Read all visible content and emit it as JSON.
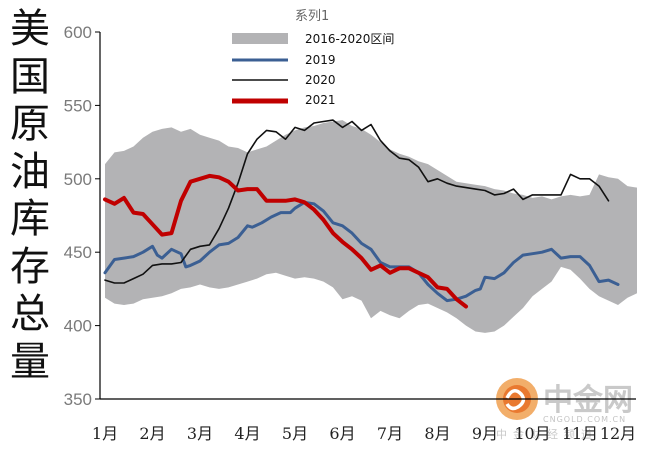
{
  "chart_data": {
    "type": "line",
    "title": "",
    "ylabel": "美国原油库存总量",
    "legend_title": "系列1",
    "legend_position": "top-center",
    "grid": false,
    "ylim": [
      350,
      600
    ],
    "yticks": [
      "350",
      "400",
      "450",
      "500",
      "550",
      "600"
    ],
    "categories": [
      "1月",
      "2月",
      "3月",
      "4月",
      "5月",
      "6月",
      "7月",
      "8月",
      "9月",
      "10月",
      "11月",
      "12月"
    ],
    "band": {
      "name": "2016-2020区间",
      "color": "#b3b3b5",
      "upper": [
        [
          0,
          510
        ],
        [
          0.2,
          518
        ],
        [
          0.4,
          519
        ],
        [
          0.6,
          522
        ],
        [
          0.8,
          528
        ],
        [
          1.0,
          532
        ],
        [
          1.2,
          534
        ],
        [
          1.4,
          535
        ],
        [
          1.6,
          532
        ],
        [
          1.8,
          534
        ],
        [
          2.0,
          530
        ],
        [
          2.2,
          528
        ],
        [
          2.4,
          526
        ],
        [
          2.6,
          522
        ],
        [
          2.8,
          521
        ],
        [
          3.0,
          518
        ],
        [
          3.2,
          520
        ],
        [
          3.4,
          522
        ],
        [
          3.6,
          526
        ],
        [
          3.8,
          530
        ],
        [
          4.0,
          533
        ],
        [
          4.2,
          535
        ],
        [
          4.4,
          536
        ],
        [
          4.6,
          538
        ],
        [
          4.8,
          539
        ],
        [
          5.0,
          540
        ],
        [
          5.2,
          536
        ],
        [
          5.4,
          534
        ],
        [
          5.6,
          530
        ],
        [
          5.8,
          525
        ],
        [
          6.0,
          520
        ],
        [
          6.2,
          517
        ],
        [
          6.4,
          515
        ],
        [
          6.6,
          512
        ],
        [
          6.8,
          510
        ],
        [
          7.0,
          506
        ],
        [
          7.2,
          502
        ],
        [
          7.4,
          498
        ],
        [
          7.6,
          497
        ],
        [
          7.8,
          496
        ],
        [
          8.0,
          495
        ],
        [
          8.2,
          493
        ],
        [
          8.4,
          492
        ],
        [
          8.6,
          490
        ],
        [
          8.8,
          489
        ],
        [
          9.0,
          487
        ],
        [
          9.2,
          488
        ],
        [
          9.4,
          486
        ],
        [
          9.6,
          488
        ],
        [
          9.8,
          489
        ],
        [
          10.0,
          488
        ],
        [
          10.2,
          489
        ],
        [
          10.4,
          503
        ],
        [
          10.6,
          501
        ],
        [
          10.8,
          500
        ],
        [
          11.0,
          495
        ],
        [
          11.2,
          494
        ]
      ],
      "lower": [
        [
          11.2,
          422
        ],
        [
          11.0,
          419
        ],
        [
          10.8,
          414
        ],
        [
          10.6,
          417
        ],
        [
          10.4,
          420
        ],
        [
          10.2,
          425
        ],
        [
          10.0,
          432
        ],
        [
          9.8,
          438
        ],
        [
          9.6,
          440
        ],
        [
          9.4,
          430
        ],
        [
          9.2,
          425
        ],
        [
          9.0,
          420
        ],
        [
          8.8,
          412
        ],
        [
          8.6,
          406
        ],
        [
          8.4,
          400
        ],
        [
          8.2,
          396
        ],
        [
          8.0,
          395
        ],
        [
          7.8,
          396
        ],
        [
          7.6,
          400
        ],
        [
          7.4,
          405
        ],
        [
          7.2,
          409
        ],
        [
          7.0,
          412
        ],
        [
          6.8,
          415
        ],
        [
          6.6,
          414
        ],
        [
          6.4,
          410
        ],
        [
          6.2,
          405
        ],
        [
          6.0,
          407
        ],
        [
          5.8,
          410
        ],
        [
          5.6,
          405
        ],
        [
          5.4,
          417
        ],
        [
          5.2,
          420
        ],
        [
          5.0,
          418
        ],
        [
          4.8,
          426
        ],
        [
          4.6,
          430
        ],
        [
          4.4,
          432
        ],
        [
          4.2,
          433
        ],
        [
          4.0,
          432
        ],
        [
          3.8,
          434
        ],
        [
          3.6,
          436
        ],
        [
          3.4,
          435
        ],
        [
          3.2,
          432
        ],
        [
          3.0,
          430
        ],
        [
          2.8,
          428
        ],
        [
          2.6,
          426
        ],
        [
          2.4,
          425
        ],
        [
          2.2,
          426
        ],
        [
          2.0,
          428
        ],
        [
          1.8,
          426
        ],
        [
          1.6,
          425
        ],
        [
          1.4,
          422
        ],
        [
          1.2,
          420
        ],
        [
          1.0,
          419
        ],
        [
          0.8,
          418
        ],
        [
          0.6,
          415
        ],
        [
          0.4,
          414
        ],
        [
          0.2,
          415
        ],
        [
          0,
          419
        ]
      ]
    },
    "series": [
      {
        "name": "2019",
        "color": "#3b5f93",
        "width": 3,
        "points": [
          [
            0,
            436
          ],
          [
            0.2,
            445
          ],
          [
            0.4,
            446
          ],
          [
            0.6,
            447
          ],
          [
            0.8,
            450
          ],
          [
            1.0,
            454
          ],
          [
            1.1,
            448
          ],
          [
            1.2,
            446
          ],
          [
            1.4,
            452
          ],
          [
            1.6,
            449
          ],
          [
            1.7,
            440
          ],
          [
            1.8,
            441
          ],
          [
            2.0,
            444
          ],
          [
            2.2,
            450
          ],
          [
            2.4,
            455
          ],
          [
            2.6,
            456
          ],
          [
            2.8,
            460
          ],
          [
            3.0,
            468
          ],
          [
            3.1,
            467
          ],
          [
            3.3,
            470
          ],
          [
            3.5,
            474
          ],
          [
            3.7,
            477
          ],
          [
            3.9,
            477
          ],
          [
            4.0,
            480
          ],
          [
            4.2,
            484
          ],
          [
            4.4,
            483
          ],
          [
            4.6,
            478
          ],
          [
            4.8,
            470
          ],
          [
            5.0,
            468
          ],
          [
            5.2,
            463
          ],
          [
            5.4,
            456
          ],
          [
            5.6,
            452
          ],
          [
            5.8,
            443
          ],
          [
            6.0,
            440
          ],
          [
            6.2,
            440
          ],
          [
            6.4,
            440
          ],
          [
            6.6,
            436
          ],
          [
            6.8,
            428
          ],
          [
            7.0,
            422
          ],
          [
            7.2,
            417
          ],
          [
            7.4,
            418
          ],
          [
            7.6,
            420
          ],
          [
            7.8,
            424
          ],
          [
            7.9,
            425
          ],
          [
            8.0,
            433
          ],
          [
            8.2,
            432
          ],
          [
            8.4,
            436
          ],
          [
            8.6,
            443
          ],
          [
            8.8,
            448
          ],
          [
            9.0,
            449
          ],
          [
            9.2,
            450
          ],
          [
            9.4,
            452
          ],
          [
            9.6,
            446
          ],
          [
            9.8,
            447
          ],
          [
            10.0,
            447
          ],
          [
            10.2,
            441
          ],
          [
            10.4,
            430
          ],
          [
            10.6,
            431
          ],
          [
            10.8,
            428
          ]
        ]
      },
      {
        "name": "2020",
        "color": "#111111",
        "width": 1.6,
        "points": [
          [
            0,
            431
          ],
          [
            0.2,
            429
          ],
          [
            0.4,
            429
          ],
          [
            0.6,
            432
          ],
          [
            0.8,
            435
          ],
          [
            1.0,
            441
          ],
          [
            1.2,
            442
          ],
          [
            1.4,
            442
          ],
          [
            1.6,
            443
          ],
          [
            1.8,
            452
          ],
          [
            2.0,
            454
          ],
          [
            2.2,
            455
          ],
          [
            2.4,
            466
          ],
          [
            2.6,
            480
          ],
          [
            2.8,
            497
          ],
          [
            3.0,
            517
          ],
          [
            3.2,
            527
          ],
          [
            3.4,
            533
          ],
          [
            3.6,
            532
          ],
          [
            3.8,
            527
          ],
          [
            4.0,
            535
          ],
          [
            4.2,
            533
          ],
          [
            4.4,
            538
          ],
          [
            4.6,
            539
          ],
          [
            4.8,
            540
          ],
          [
            5.0,
            535
          ],
          [
            5.2,
            539
          ],
          [
            5.4,
            533
          ],
          [
            5.6,
            537
          ],
          [
            5.8,
            526
          ],
          [
            6.0,
            519
          ],
          [
            6.2,
            514
          ],
          [
            6.4,
            513
          ],
          [
            6.6,
            508
          ],
          [
            6.8,
            498
          ],
          [
            7.0,
            500
          ],
          [
            7.2,
            497
          ],
          [
            7.4,
            495
          ],
          [
            7.6,
            494
          ],
          [
            7.8,
            493
          ],
          [
            8.0,
            492
          ],
          [
            8.2,
            489
          ],
          [
            8.4,
            490
          ],
          [
            8.6,
            493
          ],
          [
            8.8,
            486
          ],
          [
            9.0,
            489
          ],
          [
            9.2,
            489
          ],
          [
            9.4,
            489
          ],
          [
            9.6,
            489
          ],
          [
            9.8,
            503
          ],
          [
            10.0,
            500
          ],
          [
            10.2,
            500
          ],
          [
            10.4,
            495
          ],
          [
            10.6,
            485
          ]
        ]
      },
      {
        "name": "2021",
        "color": "#c00000",
        "width": 4,
        "points": [
          [
            0,
            486
          ],
          [
            0.2,
            483
          ],
          [
            0.4,
            487
          ],
          [
            0.6,
            477
          ],
          [
            0.8,
            476
          ],
          [
            1.0,
            469
          ],
          [
            1.2,
            462
          ],
          [
            1.4,
            463
          ],
          [
            1.6,
            485
          ],
          [
            1.8,
            498
          ],
          [
            2.0,
            500
          ],
          [
            2.2,
            502
          ],
          [
            2.4,
            501
          ],
          [
            2.6,
            498
          ],
          [
            2.8,
            492
          ],
          [
            3.0,
            493
          ],
          [
            3.2,
            493
          ],
          [
            3.4,
            485
          ],
          [
            3.6,
            485
          ],
          [
            3.8,
            485
          ],
          [
            4.0,
            486
          ],
          [
            4.2,
            484
          ],
          [
            4.4,
            479
          ],
          [
            4.6,
            472
          ],
          [
            4.8,
            463
          ],
          [
            5.0,
            457
          ],
          [
            5.2,
            452
          ],
          [
            5.4,
            446
          ],
          [
            5.6,
            438
          ],
          [
            5.8,
            441
          ],
          [
            6.0,
            436
          ],
          [
            6.2,
            439
          ],
          [
            6.4,
            439
          ],
          [
            6.6,
            436
          ],
          [
            6.8,
            433
          ],
          [
            7.0,
            426
          ],
          [
            7.2,
            425
          ],
          [
            7.4,
            418
          ],
          [
            7.6,
            413
          ]
        ]
      }
    ]
  },
  "watermark": {
    "brand": "中金网",
    "site": "CNGOLD.COM.CN",
    "sub": "中金财经频道"
  }
}
